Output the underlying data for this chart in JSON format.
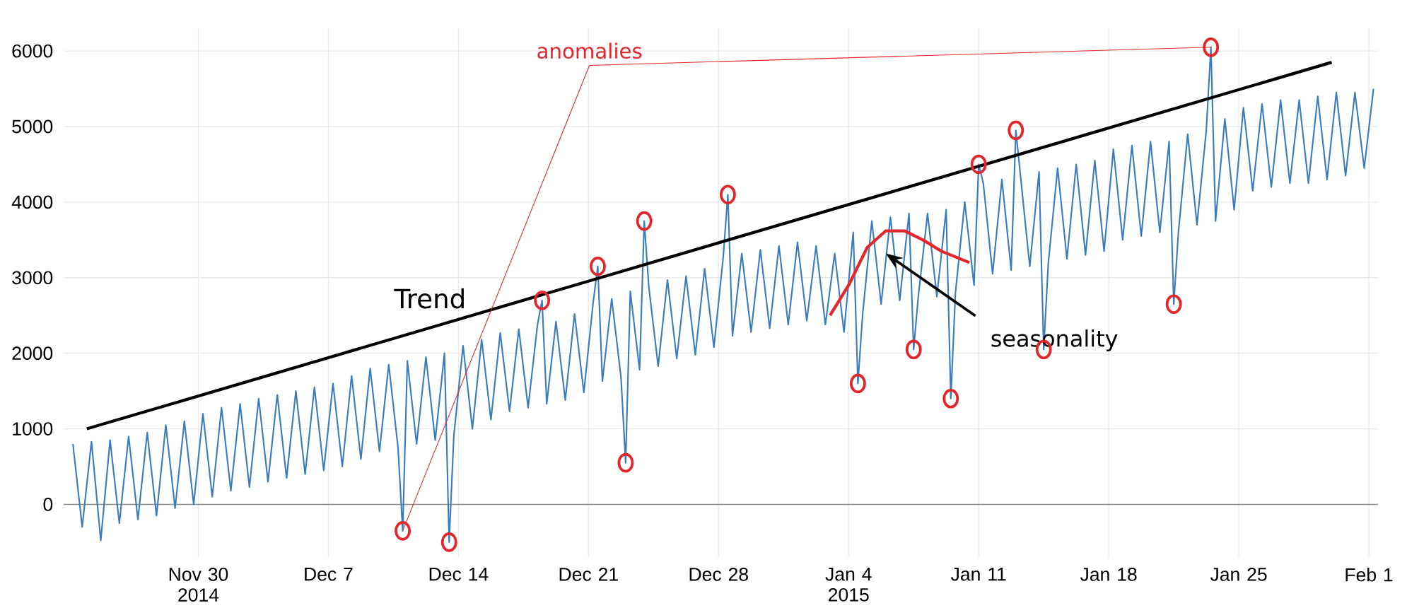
{
  "chart_data": {
    "type": "line",
    "marker": "none",
    "grid": true,
    "xlim": [
      "2014-11-22T18:00",
      "2015-02-01T12:00"
    ],
    "ylim": [
      -700,
      6300
    ],
    "yticks": [
      0,
      1000,
      2000,
      3000,
      4000,
      5000,
      6000
    ],
    "xticks": [
      {
        "value": "2014-11-30",
        "label": "Nov 30 2014"
      },
      {
        "value": "2014-12-07",
        "label": "Dec 7"
      },
      {
        "value": "2014-12-14",
        "label": "Dec 14"
      },
      {
        "value": "2014-12-21",
        "label": "Dec 21"
      },
      {
        "value": "2014-12-28",
        "label": "Dec 28"
      },
      {
        "value": "2015-01-04",
        "label": "Jan 4 2015"
      },
      {
        "value": "2015-01-11",
        "label": "Jan 11"
      },
      {
        "value": "2015-01-18",
        "label": "Jan 18"
      },
      {
        "value": "2015-01-25",
        "label": "Jan 25"
      },
      {
        "value": "2015-02-01",
        "label": "Feb 1"
      }
    ],
    "ref_lines": [
      {
        "axis": "y",
        "value": 0,
        "color": "#8c8c8c"
      }
    ],
    "series": [
      {
        "color": "#3a7dbf",
        "x": [
          "2014-11-23T06:00",
          "2014-11-23T18:00",
          "2014-11-24T06:00",
          "2014-11-24T18:00",
          "2014-11-25T06:00",
          "2014-11-25T18:00",
          "2014-11-26T06:00",
          "2014-11-26T18:00",
          "2014-11-27T06:00",
          "2014-11-27T18:00",
          "2014-11-28T06:00",
          "2014-11-28T18:00",
          "2014-11-29T06:00",
          "2014-11-29T18:00",
          "2014-11-30T06:00",
          "2014-11-30T18:00",
          "2014-12-01T06:00",
          "2014-12-01T18:00",
          "2014-12-02T06:00",
          "2014-12-02T18:00",
          "2014-12-03T06:00",
          "2014-12-03T18:00",
          "2014-12-04T06:00",
          "2014-12-04T18:00",
          "2014-12-05T06:00",
          "2014-12-05T18:00",
          "2014-12-06T06:00",
          "2014-12-06T18:00",
          "2014-12-07T06:00",
          "2014-12-07T18:00",
          "2014-12-08T06:00",
          "2014-12-08T18:00",
          "2014-12-09T06:00",
          "2014-12-09T18:00",
          "2014-12-10T06:00",
          "2014-12-10T18:00",
          "2014-12-11T00:00",
          "2014-12-11T06:00",
          "2014-12-11T18:00",
          "2014-12-12T06:00",
          "2014-12-12T18:00",
          "2014-12-13T06:00",
          "2014-12-13T12:00",
          "2014-12-13T18:00",
          "2014-12-14T06:00",
          "2014-12-14T18:00",
          "2014-12-15T06:00",
          "2014-12-15T18:00",
          "2014-12-16T06:00",
          "2014-12-16T18:00",
          "2014-12-17T06:00",
          "2014-12-17T18:00",
          "2014-12-18T06:00",
          "2014-12-18T12:00",
          "2014-12-18T18:00",
          "2014-12-19T06:00",
          "2014-12-19T18:00",
          "2014-12-20T06:00",
          "2014-12-20T18:00",
          "2014-12-21T06:00",
          "2014-12-21T12:00",
          "2014-12-21T18:00",
          "2014-12-22T06:00",
          "2014-12-22T18:00",
          "2014-12-23T00:00",
          "2014-12-23T06:00",
          "2014-12-23T18:00",
          "2014-12-24T00:00",
          "2014-12-24T06:00",
          "2014-12-24T18:00",
          "2014-12-25T06:00",
          "2014-12-25T18:00",
          "2014-12-26T06:00",
          "2014-12-26T18:00",
          "2014-12-27T06:00",
          "2014-12-27T18:00",
          "2014-12-28T06:00",
          "2014-12-28T12:00",
          "2014-12-28T18:00",
          "2014-12-29T06:00",
          "2014-12-29T18:00",
          "2014-12-30T06:00",
          "2014-12-30T18:00",
          "2014-12-31T06:00",
          "2014-12-31T18:00",
          "2015-01-01T06:00",
          "2015-01-01T18:00",
          "2015-01-02T06:00",
          "2015-01-02T18:00",
          "2015-01-03T06:00",
          "2015-01-03T18:00",
          "2015-01-04T06:00",
          "2015-01-04T12:00",
          "2015-01-04T18:00",
          "2015-01-05T06:00",
          "2015-01-05T18:00",
          "2015-01-06T06:00",
          "2015-01-06T18:00",
          "2015-01-07T06:00",
          "2015-01-07T12:00",
          "2015-01-07T18:00",
          "2015-01-08T06:00",
          "2015-01-08T18:00",
          "2015-01-09T06:00",
          "2015-01-09T12:00",
          "2015-01-09T18:00",
          "2015-01-10T06:00",
          "2015-01-10T18:00",
          "2015-01-11T00:00",
          "2015-01-11T06:00",
          "2015-01-11T18:00",
          "2015-01-12T06:00",
          "2015-01-12T18:00",
          "2015-01-13T00:00",
          "2015-01-13T06:00",
          "2015-01-13T18:00",
          "2015-01-14T06:00",
          "2015-01-14T12:00",
          "2015-01-14T18:00",
          "2015-01-15T06:00",
          "2015-01-15T18:00",
          "2015-01-16T06:00",
          "2015-01-16T18:00",
          "2015-01-17T06:00",
          "2015-01-17T18:00",
          "2015-01-18T06:00",
          "2015-01-18T18:00",
          "2015-01-19T06:00",
          "2015-01-19T18:00",
          "2015-01-20T06:00",
          "2015-01-20T18:00",
          "2015-01-21T06:00",
          "2015-01-21T12:00",
          "2015-01-21T18:00",
          "2015-01-22T06:00",
          "2015-01-22T18:00",
          "2015-01-23T06:00",
          "2015-01-23T12:00",
          "2015-01-23T18:00",
          "2015-01-24T06:00",
          "2015-01-24T18:00",
          "2015-01-25T06:00",
          "2015-01-25T18:00",
          "2015-01-26T06:00",
          "2015-01-26T18:00",
          "2015-01-27T06:00",
          "2015-01-27T18:00",
          "2015-01-28T06:00",
          "2015-01-28T18:00",
          "2015-01-29T06:00",
          "2015-01-29T18:00",
          "2015-01-30T06:00",
          "2015-01-30T18:00",
          "2015-01-31T06:00",
          "2015-01-31T18:00",
          "2015-02-01T06:00"
        ],
        "values": [
          800,
          -300,
          830,
          -480,
          850,
          -250,
          900,
          -200,
          950,
          -150,
          1050,
          -50,
          1100,
          0,
          1200,
          100,
          1280,
          180,
          1330,
          230,
          1400,
          300,
          1450,
          350,
          1500,
          400,
          1550,
          450,
          1600,
          500,
          1700,
          600,
          1800,
          700,
          1850,
          750,
          -350,
          1900,
          800,
          1950,
          850,
          2000,
          -500,
          900,
          2100,
          1000,
          2180,
          1120,
          2270,
          1230,
          2320,
          1280,
          2370,
          2700,
          1330,
          2420,
          1380,
          2520,
          1480,
          2670,
          3150,
          1630,
          2720,
          1680,
          550,
          2820,
          1780,
          3750,
          2870,
          1830,
          2970,
          1930,
          3020,
          1980,
          3120,
          2080,
          3270,
          4100,
          2230,
          3320,
          2280,
          3370,
          2330,
          3420,
          2380,
          3470,
          2430,
          3420,
          2380,
          3320,
          2280,
          3600,
          1600,
          2500,
          3750,
          2650,
          3800,
          2700,
          3850,
          2050,
          2750,
          3850,
          2750,
          3900,
          1400,
          2800,
          4000,
          2900,
          4500,
          4250,
          3050,
          4300,
          3100,
          4950,
          4350,
          3150,
          4400,
          2050,
          3200,
          4450,
          3250,
          4500,
          3300,
          4550,
          3350,
          4700,
          3500,
          4750,
          3550,
          4800,
          3600,
          4800,
          2650,
          3600,
          4900,
          3700,
          4950,
          6050,
          3750,
          5100,
          3900,
          5250,
          4150,
          5300,
          4200,
          5350,
          4250,
          5350,
          4250,
          5400,
          4300,
          5450,
          4350,
          5450,
          4450,
          5500
        ]
      },
      {
        "name": "Trend",
        "color": "#000000",
        "x": [
          "2014-11-24",
          "2015-01-30"
        ],
        "values": [
          1000,
          5850
        ]
      },
      {
        "name": "seasonality",
        "color": "#e3262b",
        "x": [
          "2015-01-03",
          "2015-01-04",
          "2015-01-05",
          "2015-01-06",
          "2015-01-07",
          "2015-01-08",
          "2015-01-09",
          "2015-01-10T12:00"
        ],
        "values": [
          2500,
          2900,
          3400,
          3620,
          3620,
          3500,
          3350,
          3200
        ]
      },
      {
        "name": "anomalies",
        "type": "scatter",
        "marker": "circle",
        "color": "#e3262b",
        "x": [
          "2014-12-11T00:00",
          "2014-12-13T12:00",
          "2014-12-18T12:00",
          "2014-12-21T12:00",
          "2014-12-23T00:00",
          "2014-12-24T00:00",
          "2014-12-28T12:00",
          "2015-01-04T12:00",
          "2015-01-07T12:00",
          "2015-01-09T12:00",
          "2015-01-11T00:00",
          "2015-01-13T00:00",
          "2015-01-14T12:00",
          "2015-01-21T12:00",
          "2015-01-23T12:00"
        ],
        "values": [
          -350,
          -500,
          2700,
          3150,
          550,
          3750,
          4100,
          1600,
          2050,
          1400,
          4500,
          4950,
          2050,
          2650,
          6050
        ]
      }
    ]
  }
}
